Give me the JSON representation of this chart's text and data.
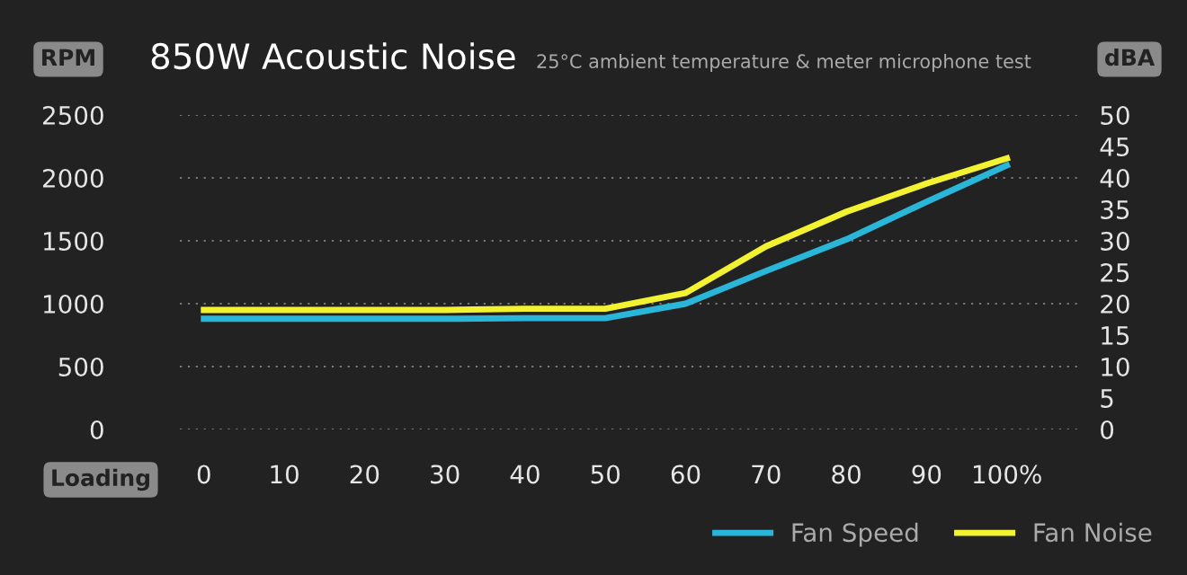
{
  "chart_data": {
    "type": "line",
    "title": "850W Acoustic Noise",
    "subtitle": "25°C ambient temperature & meter microphone test",
    "xlabel": "Loading",
    "ylabel": "RPM",
    "y2label": "dBA",
    "x": [
      0,
      10,
      20,
      30,
      40,
      50,
      60,
      70,
      80,
      90,
      100
    ],
    "series": [
      {
        "name": "Fan Speed",
        "color": "#29b6d8",
        "values": [
          880,
          880,
          880,
          880,
          885,
          885,
          1000,
          1260,
          1510,
          1810,
          2100
        ]
      },
      {
        "name": "Fan Noise",
        "color": "#f2f230",
        "axis": "y2",
        "values": [
          19,
          19,
          19,
          19,
          19.2,
          19.2,
          21.7,
          29.1,
          34.6,
          39.1,
          43.1
        ]
      }
    ],
    "xlim": [
      -3,
      109
    ],
    "xticks": [
      0,
      10,
      20,
      30,
      40,
      50,
      60,
      70,
      80,
      90,
      {
        "value": 100,
        "label": "100%"
      }
    ],
    "ylim": [
      0,
      2500
    ],
    "yticks": [
      0,
      500,
      1000,
      1500,
      2000,
      2500
    ],
    "y2lim": [
      0,
      50
    ],
    "y2ticks": [
      0,
      5,
      10,
      15,
      20,
      25,
      30,
      35,
      40,
      45,
      50
    ],
    "grid": "y",
    "legend": "bottom right",
    "marker": "none",
    "line_style": "solid"
  }
}
